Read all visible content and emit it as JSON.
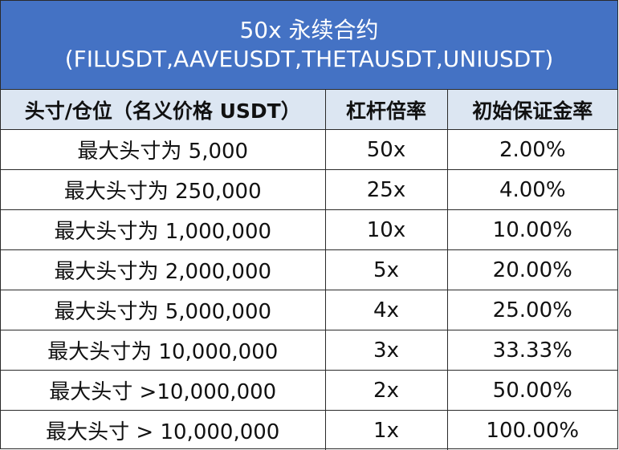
{
  "title": {
    "line1": "50x 永续合约",
    "line2": "(FILUSDT,AAVEUSDT,THETAUSDT,UNIUSDT)"
  },
  "colors": {
    "title_background": "#4472c4",
    "header_background": "#dce6f2",
    "title_text": "#ffffff"
  },
  "table": {
    "headers": [
      "头寸/仓位（名义价格 USDT）",
      "杠杆倍率",
      "初始保证金率"
    ],
    "rows": [
      {
        "position": "最大头寸为 5,000",
        "leverage": "50x",
        "margin": "2.00%"
      },
      {
        "position": "最大头寸为 250,000",
        "leverage": "25x",
        "margin": "4.00%"
      },
      {
        "position": "最大头寸为 1,000,000",
        "leverage": "10x",
        "margin": "10.00%"
      },
      {
        "position": "最大头寸为 2,000,000",
        "leverage": "5x",
        "margin": "20.00%"
      },
      {
        "position": "最大头寸为 5,000,000",
        "leverage": "4x",
        "margin": "25.00%"
      },
      {
        "position": "最大头寸为 10,000,000",
        "leverage": "3x",
        "margin": "33.33%"
      },
      {
        "position": "最大头寸 >10,000,000",
        "leverage": "2x",
        "margin": "50.00%"
      },
      {
        "position": "最大头寸 > 10,000,000",
        "leverage": "1x",
        "margin": "100.00%"
      }
    ]
  }
}
